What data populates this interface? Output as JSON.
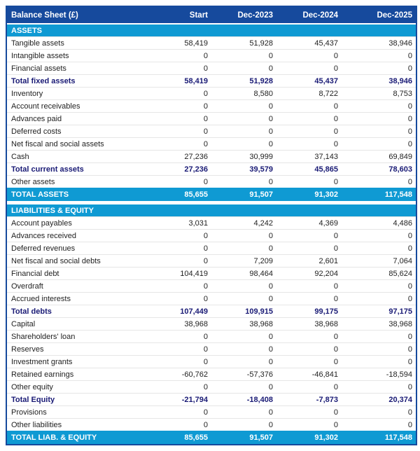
{
  "table": {
    "header": {
      "label": "Balance Sheet (£)",
      "columns": [
        "Start",
        "Dec-2023",
        "Dec-2024",
        "Dec-2025"
      ]
    },
    "sections": [
      {
        "title": "ASSETS",
        "rows": [
          {
            "label": "Tangible assets",
            "bold": false,
            "values": [
              "58,419",
              "51,928",
              "45,437",
              "38,946"
            ]
          },
          {
            "label": "Intangible assets",
            "bold": false,
            "values": [
              "0",
              "0",
              "0",
              "0"
            ]
          },
          {
            "label": "Financial assets",
            "bold": false,
            "values": [
              "0",
              "0",
              "0",
              "0"
            ]
          },
          {
            "label": "Total fixed assets",
            "bold": true,
            "values": [
              "58,419",
              "51,928",
              "45,437",
              "38,946"
            ]
          },
          {
            "label": "Inventory",
            "bold": false,
            "values": [
              "0",
              "8,580",
              "8,722",
              "8,753"
            ]
          },
          {
            "label": "Account receivables",
            "bold": false,
            "values": [
              "0",
              "0",
              "0",
              "0"
            ]
          },
          {
            "label": "Advances paid",
            "bold": false,
            "values": [
              "0",
              "0",
              "0",
              "0"
            ]
          },
          {
            "label": "Deferred costs",
            "bold": false,
            "values": [
              "0",
              "0",
              "0",
              "0"
            ]
          },
          {
            "label": "Net fiscal and social assets",
            "bold": false,
            "values": [
              "0",
              "0",
              "0",
              "0"
            ]
          },
          {
            "label": "Cash",
            "bold": false,
            "values": [
              "27,236",
              "30,999",
              "37,143",
              "69,849"
            ]
          },
          {
            "label": "Total current assets",
            "bold": true,
            "values": [
              "27,236",
              "39,579",
              "45,865",
              "78,603"
            ]
          },
          {
            "label": "Other assets",
            "bold": false,
            "values": [
              "0",
              "0",
              "0",
              "0"
            ]
          }
        ],
        "total": {
          "label": "TOTAL ASSETS",
          "values": [
            "85,655",
            "91,507",
            "91,302",
            "117,548"
          ]
        }
      },
      {
        "title": "LIABILITIES & EQUITY",
        "rows": [
          {
            "label": "Account payables",
            "bold": false,
            "values": [
              "3,031",
              "4,242",
              "4,369",
              "4,486"
            ]
          },
          {
            "label": "Advances received",
            "bold": false,
            "values": [
              "0",
              "0",
              "0",
              "0"
            ]
          },
          {
            "label": "Deferred revenues",
            "bold": false,
            "values": [
              "0",
              "0",
              "0",
              "0"
            ]
          },
          {
            "label": "Net fiscal and social debts",
            "bold": false,
            "values": [
              "0",
              "7,209",
              "2,601",
              "7,064"
            ]
          },
          {
            "label": "Financial debt",
            "bold": false,
            "values": [
              "104,419",
              "98,464",
              "92,204",
              "85,624"
            ]
          },
          {
            "label": "Overdraft",
            "bold": false,
            "values": [
              "0",
              "0",
              "0",
              "0"
            ]
          },
          {
            "label": "Accrued interests",
            "bold": false,
            "values": [
              "0",
              "0",
              "0",
              "0"
            ]
          },
          {
            "label": "Total debts",
            "bold": true,
            "values": [
              "107,449",
              "109,915",
              "99,175",
              "97,175"
            ]
          },
          {
            "label": "Capital",
            "bold": false,
            "values": [
              "38,968",
              "38,968",
              "38,968",
              "38,968"
            ]
          },
          {
            "label": "Shareholders' loan",
            "bold": false,
            "values": [
              "0",
              "0",
              "0",
              "0"
            ]
          },
          {
            "label": "Reserves",
            "bold": false,
            "values": [
              "0",
              "0",
              "0",
              "0"
            ]
          },
          {
            "label": "Investment grants",
            "bold": false,
            "values": [
              "0",
              "0",
              "0",
              "0"
            ]
          },
          {
            "label": "Retained earnings",
            "bold": false,
            "values": [
              "-60,762",
              "-57,376",
              "-46,841",
              "-18,594"
            ]
          },
          {
            "label": "Other equity",
            "bold": false,
            "values": [
              "0",
              "0",
              "0",
              "0"
            ]
          },
          {
            "label": "Total Equity",
            "bold": true,
            "values": [
              "-21,794",
              "-18,408",
              "-7,873",
              "20,374"
            ]
          },
          {
            "label": "Provisions",
            "bold": false,
            "values": [
              "0",
              "0",
              "0",
              "0"
            ]
          },
          {
            "label": "Other liabilities",
            "bold": false,
            "values": [
              "0",
              "0",
              "0",
              "0"
            ]
          }
        ],
        "total": {
          "label": "TOTAL LIAB. & EQUITY",
          "values": [
            "85,655",
            "91,507",
            "91,302",
            "117,548"
          ]
        }
      }
    ]
  },
  "colors": {
    "header_bg": "#164a9d",
    "section_bg": "#0f9ad3",
    "bold_text": "#191a75",
    "body_text": "#1f1f1f"
  }
}
